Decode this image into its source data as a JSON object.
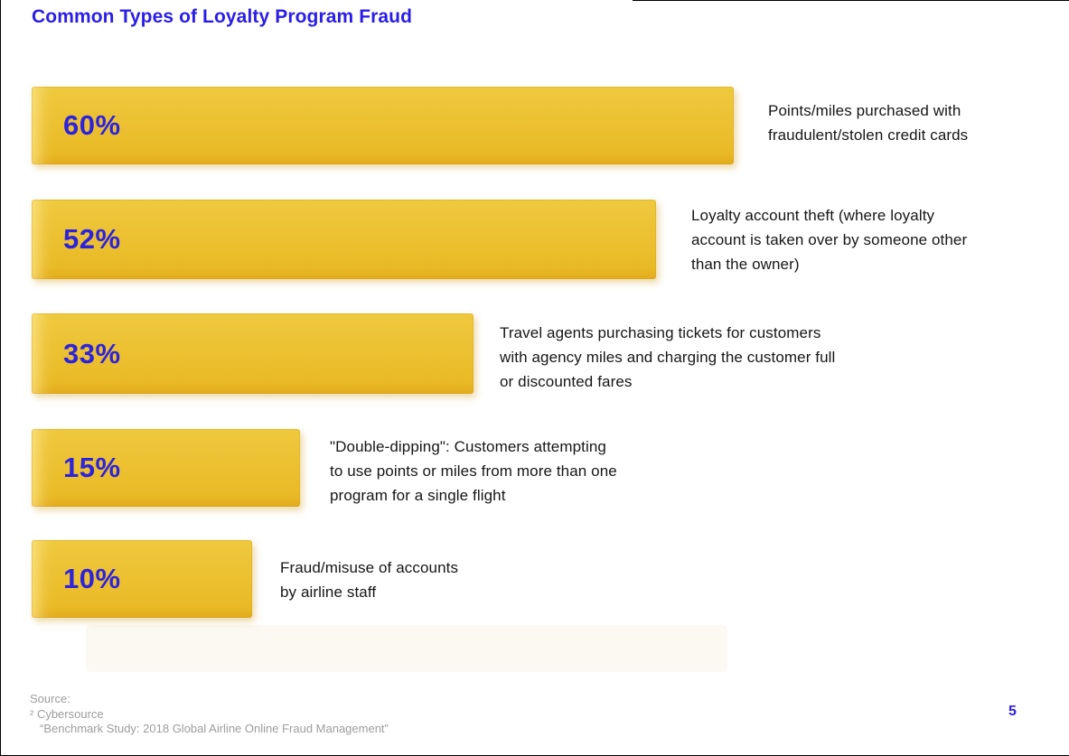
{
  "title": "Common Types of Loyalty Program Fraud",
  "chart_data": {
    "type": "bar",
    "orientation": "horizontal",
    "title": "Common Types of Loyalty Program Fraud",
    "categories": [
      "Points/miles purchased with fraudulent/stolen credit cards",
      "Loyalty account theft (where loyalty account is taken over by someone other than the owner)",
      "Travel agents purchasing tickets for customers with agency miles and charging the customer full or discounted fares",
      "\"Double-dipping\": Customers attempting to use points or miles from more than one program for a single flight",
      "Fraud/misuse of accounts by airline staff"
    ],
    "values": [
      60,
      52,
      33,
      15,
      10
    ],
    "value_labels": [
      "60%",
      "52%",
      "33%",
      "15%",
      "10%"
    ],
    "xlim": [
      0,
      100
    ],
    "grid": false,
    "legend_position": "none",
    "bar_color": "#ecc132",
    "value_label_color": "#2d23dd"
  },
  "bars": [
    {
      "label": "60%",
      "value": 60,
      "desc": "Points/miles purchased with\nfraudulent/stolen credit cards"
    },
    {
      "label": "52%",
      "value": 52,
      "desc": "Loyalty account theft (where loyalty\naccount is taken over by someone other\nthan the owner)"
    },
    {
      "label": "33%",
      "value": 33,
      "desc": "Travel agents purchasing tickets for customers\nwith agency miles and charging the customer full\nor discounted fares"
    },
    {
      "label": "15%",
      "value": 15,
      "desc": "\"Double-dipping\": Customers attempting\nto use points or miles from more than one\nprogram for a single flight"
    },
    {
      "label": "10%",
      "value": 10,
      "desc": "Fraud/misuse of accounts\nby airline staff"
    }
  ],
  "footer": {
    "source_label": "Source:",
    "source_ref": "² Cybersource",
    "source_study": "“Benchmark Study: 2018 Global Airline Online Fraud Management”",
    "page_number": "5"
  },
  "colors": {
    "accent_blue": "#2a1ee6",
    "value_blue": "#2d23dd",
    "bar_yellow": "#ecc132",
    "text_dark": "#161616",
    "source_gray": "#9d9d9d"
  }
}
